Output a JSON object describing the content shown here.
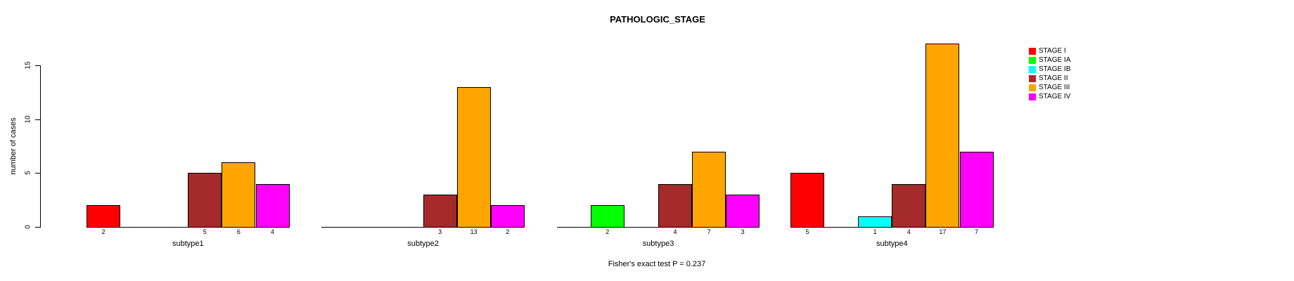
{
  "title": "PATHOLOGIC_STAGE",
  "ylabel": "number of cases",
  "footer": "Fisher's exact test P = 0.237",
  "chart_data": {
    "type": "bar",
    "grouped": true,
    "title": "PATHOLOGIC_STAGE",
    "xlabel": "",
    "ylabel": "number of cases",
    "ylim": [
      0,
      15
    ],
    "yticks": [
      0,
      5,
      10,
      15
    ],
    "grid": false,
    "legend_position": "right",
    "bar_labels": "value shown under each nonzero bar",
    "categories": [
      "subtype1",
      "subtype2",
      "subtype3",
      "subtype4"
    ],
    "series": [
      {
        "name": "STAGE I",
        "color": "#FF0000",
        "values": [
          2,
          0,
          0,
          5
        ]
      },
      {
        "name": "STAGE IA",
        "color": "#00FF00",
        "values": [
          0,
          0,
          2,
          0
        ]
      },
      {
        "name": "STAGE IB",
        "color": "#00FFFF",
        "values": [
          0,
          0,
          0,
          1
        ]
      },
      {
        "name": "STAGE II",
        "color": "#A52A2A",
        "values": [
          5,
          3,
          4,
          4
        ]
      },
      {
        "name": "STAGE III",
        "color": "#FFA500",
        "values": [
          6,
          13,
          7,
          17
        ]
      },
      {
        "name": "STAGE IV",
        "color": "#FF00FF",
        "values": [
          4,
          2,
          3,
          7
        ]
      }
    ]
  }
}
